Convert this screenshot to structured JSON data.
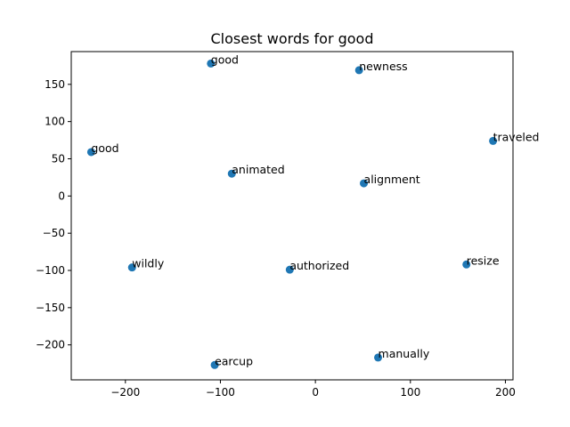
{
  "chart_data": {
    "type": "scatter",
    "title": "Closest words for good",
    "xlabel": "",
    "ylabel": "",
    "xlim": [
      -257,
      208
    ],
    "ylim": [
      -247,
      194
    ],
    "xticks": [
      -200,
      -100,
      0,
      100,
      200
    ],
    "yticks": [
      -200,
      -150,
      -100,
      -50,
      0,
      50,
      100,
      150
    ],
    "grid": false,
    "marker_color": "#1f77b4",
    "points": [
      {
        "label": "good",
        "x": -110,
        "y": 178
      },
      {
        "label": "newness",
        "x": 46,
        "y": 169
      },
      {
        "label": "traveled",
        "x": 187,
        "y": 74
      },
      {
        "label": "good",
        "x": -236,
        "y": 59
      },
      {
        "label": "animated",
        "x": -88,
        "y": 30
      },
      {
        "label": "alignment",
        "x": 51,
        "y": 17
      },
      {
        "label": "resize",
        "x": 159,
        "y": -92
      },
      {
        "label": "wildly",
        "x": -193,
        "y": -96
      },
      {
        "label": "authorized",
        "x": -27,
        "y": -99
      },
      {
        "label": "manually",
        "x": 66,
        "y": -217
      },
      {
        "label": "earcup",
        "x": -106,
        "y": -227
      }
    ]
  }
}
